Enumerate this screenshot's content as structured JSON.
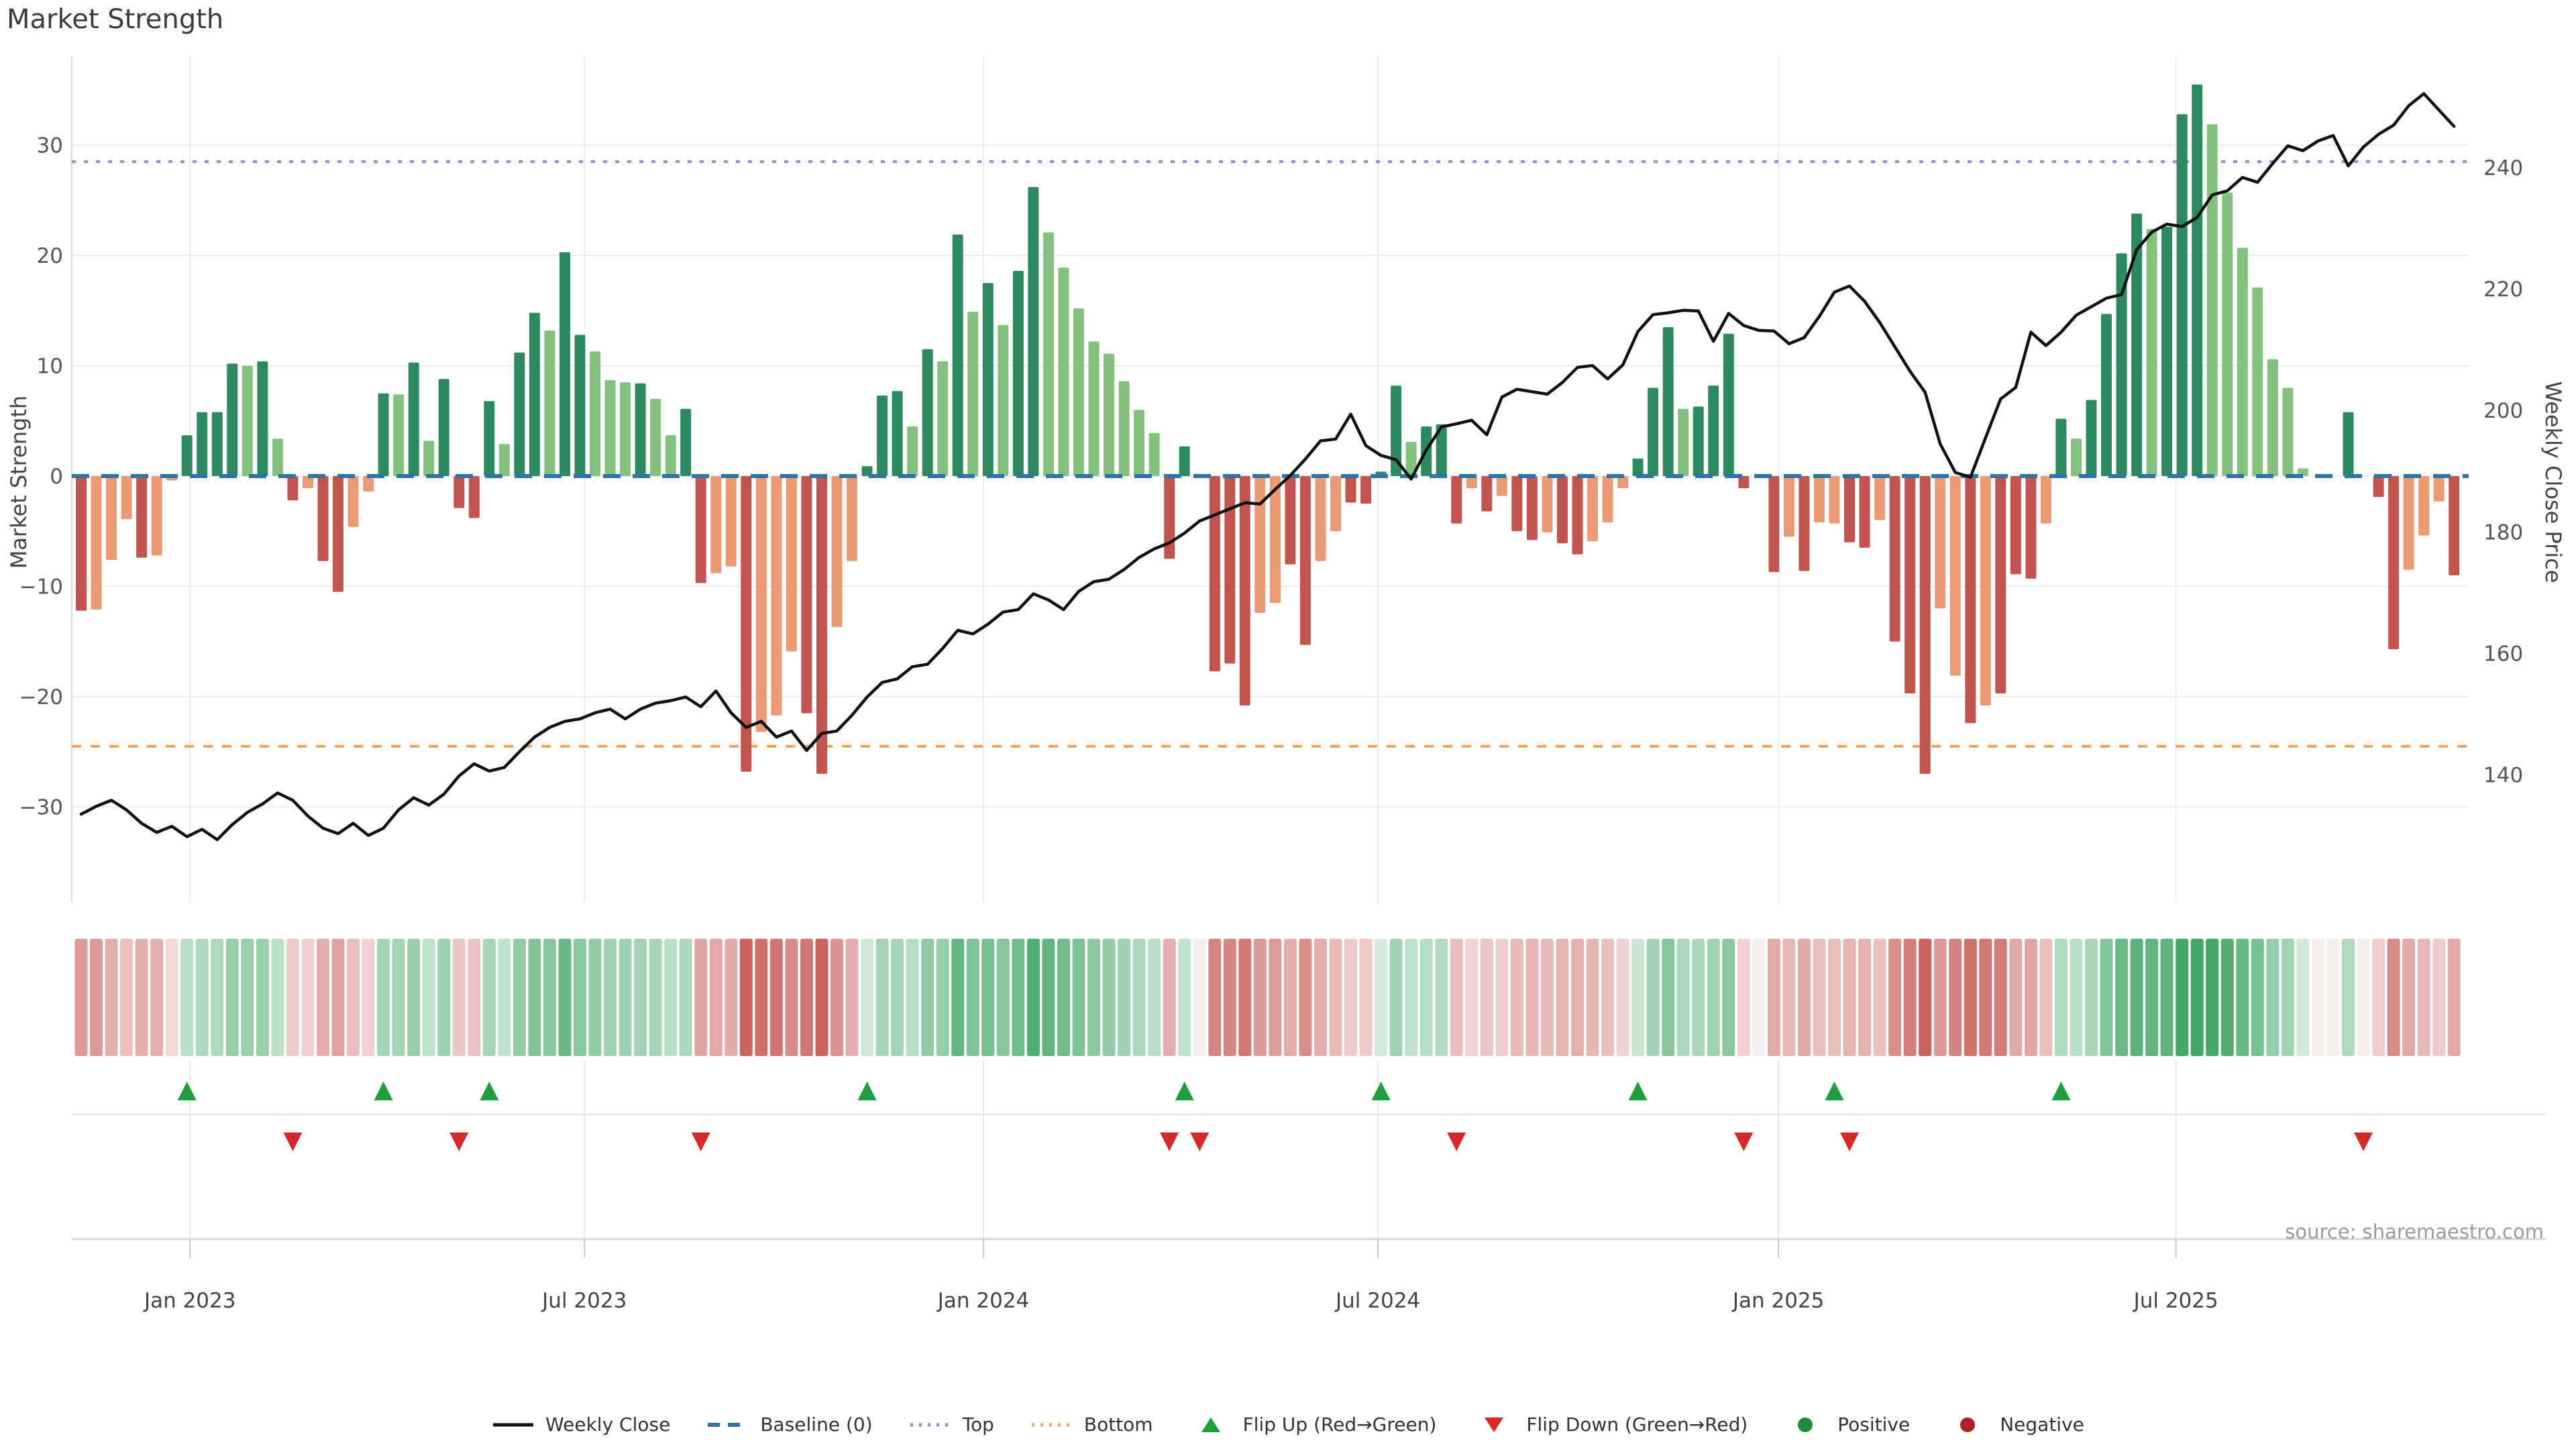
{
  "title": "Market Strength",
  "source": "source: sharemaestro.com",
  "axes": {
    "left": {
      "label": "Market Strength",
      "ticks": [
        30,
        20,
        10,
        0,
        -10,
        -20,
        -30
      ]
    },
    "right": {
      "label": "Weekly Close Price",
      "ticks": [
        240,
        220,
        200,
        180,
        160,
        140
      ]
    },
    "x": {
      "labels": [
        "Jan 2023",
        "Jul 2023",
        "Jan 2024",
        "Jul 2024",
        "Jan 2025",
        "Jul 2025"
      ],
      "week_positions": [
        7.2,
        33.3,
        59.7,
        85.8,
        112.3,
        138.6
      ]
    }
  },
  "legend": [
    {
      "label": "Weekly Close",
      "type": "line",
      "color": "#111111"
    },
    {
      "label": "Baseline (0)",
      "type": "dashes",
      "color": "#2e74a8"
    },
    {
      "label": "Top",
      "type": "dots",
      "color": "#a97fd1"
    },
    {
      "label": "Bottom",
      "type": "dots",
      "color": "#f2a45c"
    },
    {
      "label": "Flip Up (Red→Green)",
      "type": "triangle-up",
      "color": "#1f9e40"
    },
    {
      "label": "Flip Down (Green→Red)",
      "type": "triangle-down",
      "color": "#d42a2a"
    },
    {
      "label": "Positive",
      "type": "circle",
      "color": "#1e8c3a"
    },
    {
      "label": "Negative",
      "type": "circle",
      "color": "#b22222"
    }
  ],
  "chart_data": {
    "type": "bar",
    "subtype": "weekly market-strength bars + weekly close line (right axis) + heatmap strip + flip markers",
    "weeks": 158,
    "title": "Market Strength",
    "xlabel": "",
    "ylabel_left": "Market Strength",
    "ylabel_right": "Weekly Close Price",
    "left_axis_range": [
      -38.6,
      38.0
    ],
    "right_axis_mapping": "price = 189.2 + 1.817 * strength",
    "grid": true,
    "legend_position": "bottom-center",
    "reference_lines": {
      "baseline": 0,
      "top": 28.5,
      "bottom": -24.5
    },
    "palette": {
      "d": "#2d8a5e",
      "l": "#85c17e",
      "s": "#eb9b74",
      "r": "#c25450",
      "n": "#f2efed"
    },
    "bar_series": {
      "name": "Market Strength",
      "values": [
        -12.2,
        -12.1,
        -7.6,
        -3.9,
        -7.4,
        -7.2,
        -0.4,
        3.7,
        5.8,
        5.8,
        10.2,
        10.0,
        10.4,
        3.4,
        -2.2,
        -1.1,
        -7.7,
        -10.5,
        -4.6,
        -1.4,
        7.5,
        7.4,
        10.3,
        3.2,
        8.8,
        -2.9,
        -3.8,
        6.8,
        2.9,
        11.2,
        14.8,
        13.2,
        20.3,
        12.8,
        11.3,
        8.7,
        8.5,
        8.4,
        7.0,
        3.7,
        6.1,
        -9.7,
        -8.8,
        -8.2,
        -26.8,
        -23.2,
        -21.7,
        -15.9,
        -21.5,
        -27.0,
        -13.7,
        -7.7,
        0.9,
        7.3,
        7.7,
        4.5,
        11.5,
        10.4,
        21.9,
        14.9,
        17.5,
        13.7,
        18.6,
        26.2,
        22.1,
        18.9,
        15.2,
        12.2,
        11.1,
        8.6,
        6.0,
        3.9,
        -7.5,
        2.7,
        0,
        -17.7,
        -17.0,
        -20.8,
        -12.4,
        -11.5,
        -8.0,
        -15.3,
        -7.7,
        -5.0,
        -2.4,
        -2.5,
        0.4,
        8.2,
        3.1,
        4.5,
        4.7,
        -4.3,
        -1.1,
        -3.2,
        -1.8,
        -5.0,
        -5.8,
        -5.1,
        -6.1,
        -7.1,
        -5.9,
        -4.2,
        -1.1,
        1.6,
        8.0,
        13.5,
        6.1,
        6.3,
        8.2,
        12.9,
        -1.1,
        0,
        -8.7,
        -5.5,
        -8.6,
        -4.2,
        -4.3,
        -6.0,
        -6.5,
        -4.0,
        -15.0,
        -19.7,
        -27.0,
        -12.0,
        -18.1,
        -22.4,
        -20.8,
        -19.7,
        -8.9,
        -9.3,
        -4.3,
        5.2,
        3.4,
        6.9,
        14.7,
        20.2,
        23.8,
        22.4,
        22.6,
        32.8,
        35.5,
        31.9,
        25.7,
        20.7,
        17.1,
        10.6,
        8.0,
        0.7,
        0,
        0,
        5.8,
        0,
        -1.9,
        -15.7,
        -8.5,
        -5.4,
        -2.3,
        -9.0
      ],
      "colors": [
        "r",
        "s",
        "s",
        "s",
        "r",
        "s",
        "s",
        "d",
        "d",
        "d",
        "d",
        "l",
        "d",
        "l",
        "r",
        "s",
        "r",
        "r",
        "s",
        "s",
        "d",
        "l",
        "d",
        "l",
        "d",
        "r",
        "r",
        "d",
        "l",
        "d",
        "d",
        "l",
        "d",
        "d",
        "l",
        "l",
        "l",
        "d",
        "l",
        "l",
        "d",
        "r",
        "s",
        "s",
        "r",
        "s",
        "s",
        "s",
        "r",
        "r",
        "s",
        "s",
        "d",
        "d",
        "d",
        "l",
        "d",
        "l",
        "d",
        "l",
        "d",
        "l",
        "d",
        "d",
        "l",
        "l",
        "l",
        "l",
        "l",
        "l",
        "l",
        "l",
        "r",
        "d",
        "n",
        "r",
        "r",
        "r",
        "s",
        "s",
        "r",
        "r",
        "s",
        "s",
        "r",
        "r",
        "d",
        "d",
        "l",
        "d",
        "d",
        "r",
        "s",
        "r",
        "s",
        "r",
        "r",
        "s",
        "r",
        "r",
        "s",
        "s",
        "s",
        "d",
        "d",
        "d",
        "l",
        "d",
        "d",
        "d",
        "r",
        "n",
        "r",
        "s",
        "r",
        "s",
        "s",
        "r",
        "r",
        "s",
        "r",
        "r",
        "r",
        "s",
        "s",
        "r",
        "s",
        "r",
        "r",
        "r",
        "s",
        "d",
        "l",
        "d",
        "d",
        "d",
        "d",
        "l",
        "d",
        "d",
        "d",
        "l",
        "l",
        "l",
        "l",
        "l",
        "l",
        "l",
        "n",
        "n",
        "d",
        "n",
        "r",
        "r",
        "s",
        "s",
        "s",
        "r"
      ]
    },
    "line_series": {
      "name": "Weekly Close",
      "axis": "right",
      "values": [
        133.5,
        134.8,
        135.8,
        134.2,
        132.0,
        130.5,
        131.5,
        129.8,
        131.0,
        129.3,
        131.8,
        133.8,
        135.2,
        137.0,
        135.8,
        133.2,
        131.2,
        130.3,
        132.0,
        130.0,
        131.2,
        134.2,
        136.2,
        135.0,
        136.8,
        139.8,
        141.8,
        140.6,
        141.2,
        143.8,
        146.2,
        147.8,
        148.8,
        149.2,
        150.2,
        150.8,
        149.2,
        150.8,
        151.8,
        152.2,
        152.8,
        151.2,
        153.8,
        150.2,
        147.8,
        148.8,
        146.2,
        147.2,
        144.0,
        146.8,
        147.2,
        149.8,
        152.8,
        155.2,
        155.8,
        157.8,
        158.2,
        160.8,
        163.8,
        163.2,
        164.8,
        166.8,
        167.2,
        169.8,
        168.8,
        167.2,
        170.2,
        171.8,
        172.2,
        173.8,
        175.8,
        177.2,
        178.2,
        179.8,
        181.8,
        182.8,
        183.8,
        184.8,
        184.6,
        187.0,
        189.3,
        192.0,
        195.0,
        195.3,
        199.4,
        194.2,
        192.6,
        191.9,
        188.7,
        193.5,
        197.3,
        197.8,
        198.4,
        196.0,
        202.2,
        203.5,
        203.1,
        202.7,
        204.6,
        207.1,
        207.4,
        205.2,
        207.5,
        213.0,
        215.8,
        216.1,
        216.5,
        216.4,
        211.4,
        216.0,
        214.0,
        213.2,
        213.1,
        211.0,
        212.0,
        215.5,
        219.5,
        220.5,
        218.0,
        214.5,
        210.5,
        206.5,
        203.0,
        194.5,
        189.8,
        189.0,
        195.5,
        201.9,
        203.8,
        212.9,
        210.7,
        212.9,
        215.7,
        217.1,
        218.5,
        219.1,
        226.5,
        229.4,
        230.7,
        230.3,
        231.8,
        235.5,
        236.2,
        238.4,
        237.6,
        240.7,
        243.6,
        242.8,
        244.4,
        245.3,
        240.3,
        243.4,
        245.5,
        247.0,
        250.2,
        252.2,
        249.5,
        246.8
      ]
    },
    "flip_up_weeks": [
      7,
      20,
      27,
      52,
      73,
      86,
      103,
      116,
      131
    ],
    "flip_down_weeks": [
      14,
      25,
      41,
      72,
      74,
      91,
      110,
      117,
      151
    ],
    "heatmap_strip": "one cell per week; green for positive strength, red for negative, color intensity proportional to |value|"
  }
}
